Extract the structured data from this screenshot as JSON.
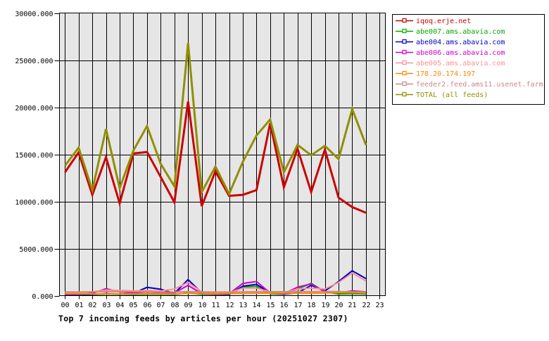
{
  "title": "Top 7 incoming feeds by articles per hour (20251027 2307)",
  "chart_data": {
    "type": "line",
    "title": "Top 7 incoming feeds by articles per hour (20251027 2307)",
    "xlabel": "",
    "ylabel": "",
    "ylim": [
      0,
      30000
    ],
    "ytick_step": 5000,
    "ytick_labels": [
      "0.000",
      "5000.000",
      "10000.000",
      "15000.000",
      "20000.000",
      "25000.000",
      "30000.000"
    ],
    "x_categories": [
      "00",
      "01",
      "02",
      "03",
      "04",
      "05",
      "06",
      "07",
      "08",
      "09",
      "10",
      "11",
      "12",
      "13",
      "14",
      "15",
      "16",
      "17",
      "18",
      "19",
      "20",
      "21",
      "22",
      "23"
    ],
    "grid": true,
    "plot_bg": "#e6e6e6",
    "grid_color": "#000000",
    "legend_position": "outside-top-right",
    "note": "data plotted for hours 00 through 22 only",
    "draw_order": [
      1,
      2,
      3,
      4,
      6,
      5,
      0,
      7
    ],
    "series": [
      {
        "name": "iqoq.erje.net",
        "color": "#cc0000",
        "line_width": 3,
        "values": [
          13100,
          15200,
          10700,
          14700,
          9800,
          15100,
          15250,
          12600,
          9900,
          20600,
          9500,
          13200,
          10600,
          10700,
          11200,
          18300,
          11500,
          15600,
          11000,
          15500,
          10400,
          9400,
          8800
        ]
      },
      {
        "name": "abe007.ams.abavia.com",
        "color": "#00aa00",
        "line_width": 2,
        "values": [
          100,
          100,
          120,
          150,
          150,
          120,
          150,
          150,
          120,
          300,
          150,
          120,
          120,
          900,
          1000,
          200,
          150,
          700,
          1310,
          400,
          180,
          220,
          180
        ]
      },
      {
        "name": "abe004.ams.abavia.com",
        "color": "#0000cc",
        "line_width": 2,
        "values": [
          120,
          130,
          150,
          200,
          160,
          250,
          880,
          680,
          250,
          1700,
          300,
          160,
          160,
          1000,
          1200,
          300,
          180,
          300,
          1100,
          500,
          1500,
          2640,
          1810
        ]
      },
      {
        "name": "abe006.ams.abavia.com",
        "color": "#cc00cc",
        "line_width": 2,
        "values": [
          150,
          150,
          250,
          730,
          400,
          300,
          400,
          300,
          300,
          1100,
          200,
          150,
          200,
          1300,
          1500,
          300,
          200,
          900,
          1250,
          400,
          300,
          500,
          400
        ]
      },
      {
        "name": "abe005.ams.abavia.com",
        "color": "#ff9090",
        "line_width": 2,
        "values": [
          250,
          250,
          400,
          600,
          550,
          500,
          550,
          500,
          700,
          1400,
          400,
          250,
          300,
          800,
          800,
          400,
          300,
          700,
          800,
          700,
          1400,
          2400,
          1550
        ]
      },
      {
        "name": "178.20.174.197",
        "color": "#ff8800",
        "line_width": 2,
        "values": [
          210,
          200,
          190,
          180,
          180,
          190,
          200,
          200,
          180,
          260,
          230,
          210,
          240,
          230,
          250,
          260,
          250,
          260,
          250,
          290,
          330,
          330,
          280
        ]
      },
      {
        "name": "feeder2.feed.ams11.usenet.farm",
        "color": "#cc8888",
        "line_width": 2,
        "values": [
          390,
          390,
          400,
          430,
          420,
          420,
          400,
          380,
          380,
          420,
          400,
          380,
          380,
          400,
          420,
          410,
          420,
          430,
          420,
          450,
          430,
          400,
          380
        ]
      },
      {
        "name": "TOTAL (all feeds)",
        "color": "#8f8f00",
        "line_width": 3,
        "values": [
          13800,
          15700,
          11200,
          17700,
          11400,
          15400,
          18000,
          14000,
          11600,
          26800,
          11000,
          13700,
          10800,
          14200,
          17000,
          18700,
          13100,
          16000,
          14900,
          15900,
          14500,
          19800,
          16000
        ]
      }
    ]
  }
}
